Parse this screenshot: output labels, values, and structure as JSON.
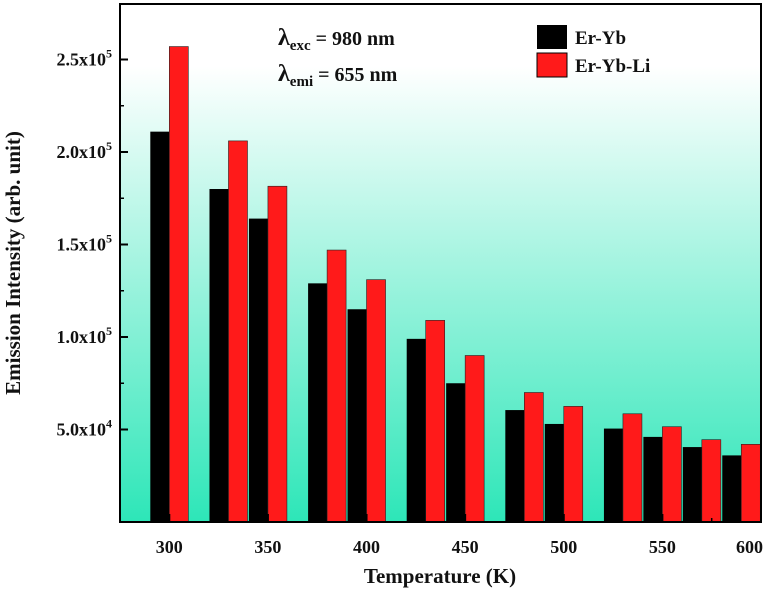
{
  "chart_data": {
    "type": "bar",
    "xlabel": "Temperature (K)",
    "ylabel": "Emission Intensity (arb. unit)",
    "xlim": [
      275,
      600
    ],
    "ylim": [
      0,
      280000
    ],
    "x_ticks": [
      "300",
      "350",
      "400",
      "450",
      "500",
      "550",
      "600"
    ],
    "y_ticks": [
      {
        "value": 50000,
        "mantissa": "5.0x10",
        "exp": "4"
      },
      {
        "value": 100000,
        "mantissa": "1.0x10",
        "exp": "5"
      },
      {
        "value": 150000,
        "mantissa": "1.5x10",
        "exp": "5"
      },
      {
        "value": 200000,
        "mantissa": "2.0x10",
        "exp": "5"
      },
      {
        "value": 250000,
        "mantissa": "2.5x10",
        "exp": "5"
      }
    ],
    "x": [
      300,
      330,
      350,
      380,
      400,
      430,
      450,
      480,
      500,
      530,
      550,
      570,
      590
    ],
    "series": [
      {
        "name": "Er-Yb",
        "color": "#000000",
        "values": [
          211000,
          180000,
          164000,
          129000,
          115000,
          99000,
          75000,
          60500,
          53000,
          50500,
          46000,
          40500,
          36000
        ]
      },
      {
        "name": "Er-Yb-Li",
        "color": "#ff1a1a",
        "values": [
          257000,
          206000,
          181500,
          147000,
          131000,
          109000,
          90000,
          70000,
          62500,
          58500,
          51500,
          44500,
          42000
        ]
      }
    ],
    "legend_position": "top-right",
    "background_gradient": [
      "#ffffff",
      "#2de6b8"
    ],
    "annotations": [
      {
        "symbol": "λ",
        "sub": "exc",
        "text": " = 980  nm"
      },
      {
        "symbol": "λ",
        "sub": "emi",
        "text": " = 655 nm"
      }
    ]
  }
}
